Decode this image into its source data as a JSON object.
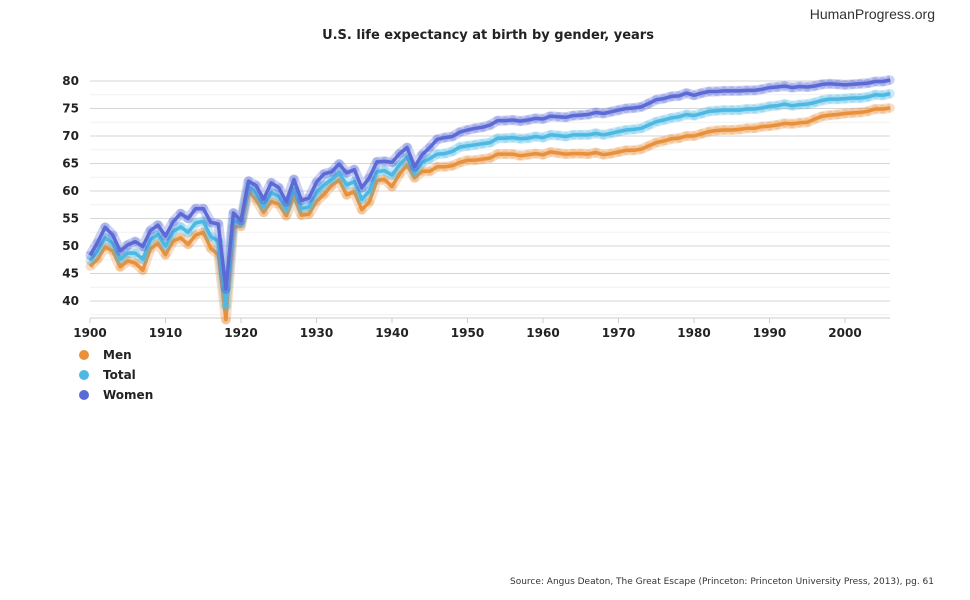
{
  "brand": "HumanProgress.org",
  "title": "U.S. life expectancy at birth by gender, years",
  "source": "Source: Angus Deaton, The Great Escape (Princeton: Princeton University Press, 2013), pg. 61",
  "chart_data": {
    "type": "line",
    "title": "U.S. life expectancy at birth by gender, years",
    "xlabel": "",
    "ylabel": "",
    "xlim": [
      1900,
      2006
    ],
    "ylim": [
      37,
      80
    ],
    "xticks": [
      1900,
      1910,
      1920,
      1930,
      1940,
      1950,
      1960,
      1970,
      1980,
      1990,
      2000
    ],
    "yticks": [
      40,
      45,
      50,
      55,
      60,
      65,
      70,
      75,
      80
    ],
    "grid": true,
    "legend": "bottom-left",
    "x_start": 1900,
    "series": [
      {
        "name": "Men",
        "color": "#E8903A",
        "values": [
          46.3,
          47.6,
          49.8,
          49.1,
          46.2,
          47.3,
          46.9,
          45.6,
          49.5,
          50.5,
          48.4,
          50.9,
          51.5,
          50.3,
          52.0,
          52.5,
          49.6,
          48.4,
          36.6,
          53.5,
          53.6,
          60.0,
          58.4,
          56.1,
          58.1,
          57.6,
          55.5,
          59.0,
          55.6,
          55.8,
          58.1,
          59.4,
          61.0,
          62.0,
          59.3,
          59.9,
          56.6,
          58.0,
          61.9,
          62.1,
          60.8,
          63.1,
          64.7,
          62.4,
          63.6,
          63.6,
          64.4,
          64.4,
          64.6,
          65.2,
          65.6,
          65.6,
          65.8,
          66.0,
          66.7,
          66.7,
          66.7,
          66.4,
          66.6,
          66.8,
          66.6,
          67.1,
          66.9,
          66.7,
          66.8,
          66.8,
          66.7,
          67.0,
          66.6,
          66.8,
          67.1,
          67.4,
          67.4,
          67.6,
          68.2,
          68.8,
          69.1,
          69.5,
          69.6,
          70.0,
          70.0,
          70.4,
          70.8,
          71.0,
          71.1,
          71.1,
          71.2,
          71.4,
          71.4,
          71.7,
          71.8,
          72.0,
          72.3,
          72.2,
          72.4,
          72.5,
          73.1,
          73.6,
          73.8,
          73.9,
          74.1,
          74.2,
          74.3,
          74.5,
          74.9,
          74.9,
          75.1
        ]
      },
      {
        "name": "Total",
        "color": "#4DB8E3",
        "values": [
          47.3,
          49.1,
          51.5,
          50.5,
          47.6,
          48.7,
          48.7,
          47.6,
          51.1,
          52.1,
          50.0,
          52.6,
          53.5,
          52.5,
          54.2,
          54.5,
          51.7,
          50.9,
          39.1,
          54.7,
          54.1,
          60.8,
          59.6,
          57.2,
          59.7,
          59.0,
          56.7,
          60.4,
          56.8,
          57.1,
          59.7,
          61.1,
          62.1,
          63.3,
          61.1,
          61.7,
          58.5,
          60.0,
          63.5,
          63.7,
          62.9,
          64.8,
          66.2,
          63.3,
          65.2,
          65.9,
          66.7,
          66.8,
          67.2,
          68.0,
          68.2,
          68.4,
          68.6,
          68.8,
          69.6,
          69.6,
          69.7,
          69.5,
          69.6,
          69.9,
          69.7,
          70.2,
          70.1,
          69.9,
          70.2,
          70.2,
          70.2,
          70.5,
          70.2,
          70.5,
          70.8,
          71.1,
          71.2,
          71.4,
          72.0,
          72.6,
          72.9,
          73.3,
          73.5,
          73.9,
          73.7,
          74.1,
          74.5,
          74.6,
          74.7,
          74.7,
          74.7,
          74.9,
          74.9,
          75.1,
          75.4,
          75.5,
          75.8,
          75.5,
          75.7,
          75.8,
          76.1,
          76.5,
          76.7,
          76.7,
          76.8,
          76.9,
          76.9,
          77.1,
          77.5,
          77.4,
          77.7
        ]
      },
      {
        "name": "Women",
        "color": "#5B6AD6",
        "values": [
          48.3,
          50.6,
          53.4,
          52.0,
          49.1,
          50.2,
          50.8,
          49.9,
          52.8,
          53.8,
          51.8,
          54.4,
          55.9,
          55.0,
          56.8,
          56.8,
          54.3,
          54.0,
          42.2,
          56.0,
          54.6,
          61.8,
          61.0,
          58.5,
          61.5,
          60.6,
          58.0,
          62.1,
          58.3,
          58.7,
          61.6,
          63.1,
          63.5,
          64.9,
          63.3,
          63.9,
          60.6,
          62.4,
          65.3,
          65.4,
          65.2,
          66.8,
          67.9,
          64.4,
          66.6,
          67.9,
          69.4,
          69.7,
          69.9,
          70.7,
          71.1,
          71.4,
          71.6,
          72.0,
          72.8,
          72.8,
          72.9,
          72.7,
          72.9,
          73.2,
          73.1,
          73.6,
          73.5,
          73.4,
          73.7,
          73.8,
          73.9,
          74.3,
          74.1,
          74.4,
          74.7,
          75.0,
          75.1,
          75.3,
          75.9,
          76.6,
          76.8,
          77.2,
          77.3,
          77.8,
          77.4,
          77.8,
          78.1,
          78.1,
          78.2,
          78.2,
          78.2,
          78.3,
          78.3,
          78.5,
          78.8,
          78.9,
          79.1,
          78.8,
          79.0,
          78.9,
          79.1,
          79.4,
          79.5,
          79.4,
          79.3,
          79.4,
          79.5,
          79.6,
          79.9,
          79.9,
          80.2
        ]
      }
    ]
  }
}
